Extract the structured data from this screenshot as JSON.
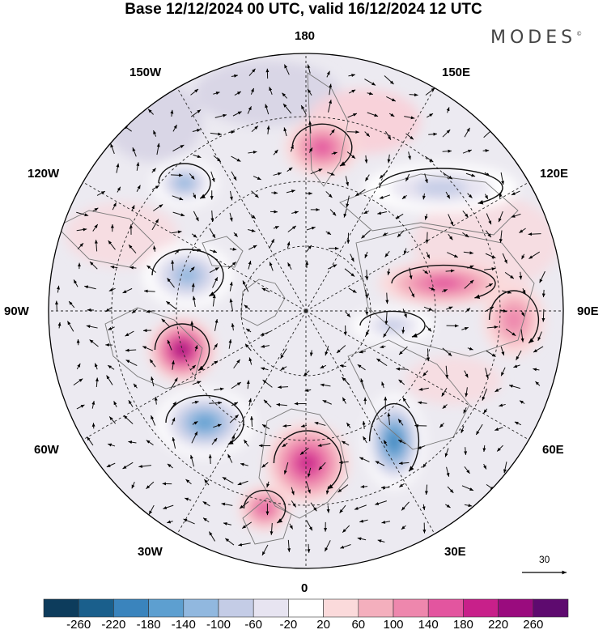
{
  "title": "Base 12/12/2024 00 UTC, valid 16/12/2024 12 UTC",
  "brand": "MODES",
  "brand_mark": "©",
  "longitude_labels": {
    "lon_180": "180",
    "lon_150e": "150E",
    "lon_120e": "120E",
    "lon_90e": "90E",
    "lon_60e": "60E",
    "lon_30e": "30E",
    "lon_0": "0",
    "lon_30w": "30W",
    "lon_60w": "60W",
    "lon_90w": "90W",
    "lon_120w": "120W",
    "lon_150w": "150W"
  },
  "wind_reference": "30",
  "colorbar": {
    "ticks": [
      "-260",
      "-220",
      "-180",
      "-140",
      "-100",
      "-60",
      "-20",
      "20",
      "60",
      "100",
      "140",
      "180",
      "220",
      "260"
    ],
    "colors": [
      "#0d3c5c",
      "#1a5f8c",
      "#3a84bd",
      "#5d9fd0",
      "#91b8df",
      "#c4cce6",
      "#e7e4f1",
      "#ffffff",
      "#fbdadb",
      "#f4afbd",
      "#ee87ad",
      "#e3559f",
      "#c8208a",
      "#9a0b7e",
      "#5e0a6f"
    ]
  },
  "anomaly_centers": [
    {
      "id": "pos-north-pacific",
      "value": 150
    },
    {
      "id": "neg-alaska",
      "value": -120
    },
    {
      "id": "neg-canada",
      "value": -130
    },
    {
      "id": "pos-hudson",
      "value": 210
    },
    {
      "id": "neg-north-atlantic",
      "value": -170
    },
    {
      "id": "pos-europe",
      "value": 170
    },
    {
      "id": "pos-iberia",
      "value": 150
    },
    {
      "id": "neg-central-europe",
      "value": -200
    },
    {
      "id": "pos-siberia",
      "value": 140
    },
    {
      "id": "neg-east-siberia",
      "value": -110
    },
    {
      "id": "neg-central-siberia",
      "value": -90
    },
    {
      "id": "pos-central-asia",
      "value": 110
    }
  ]
}
